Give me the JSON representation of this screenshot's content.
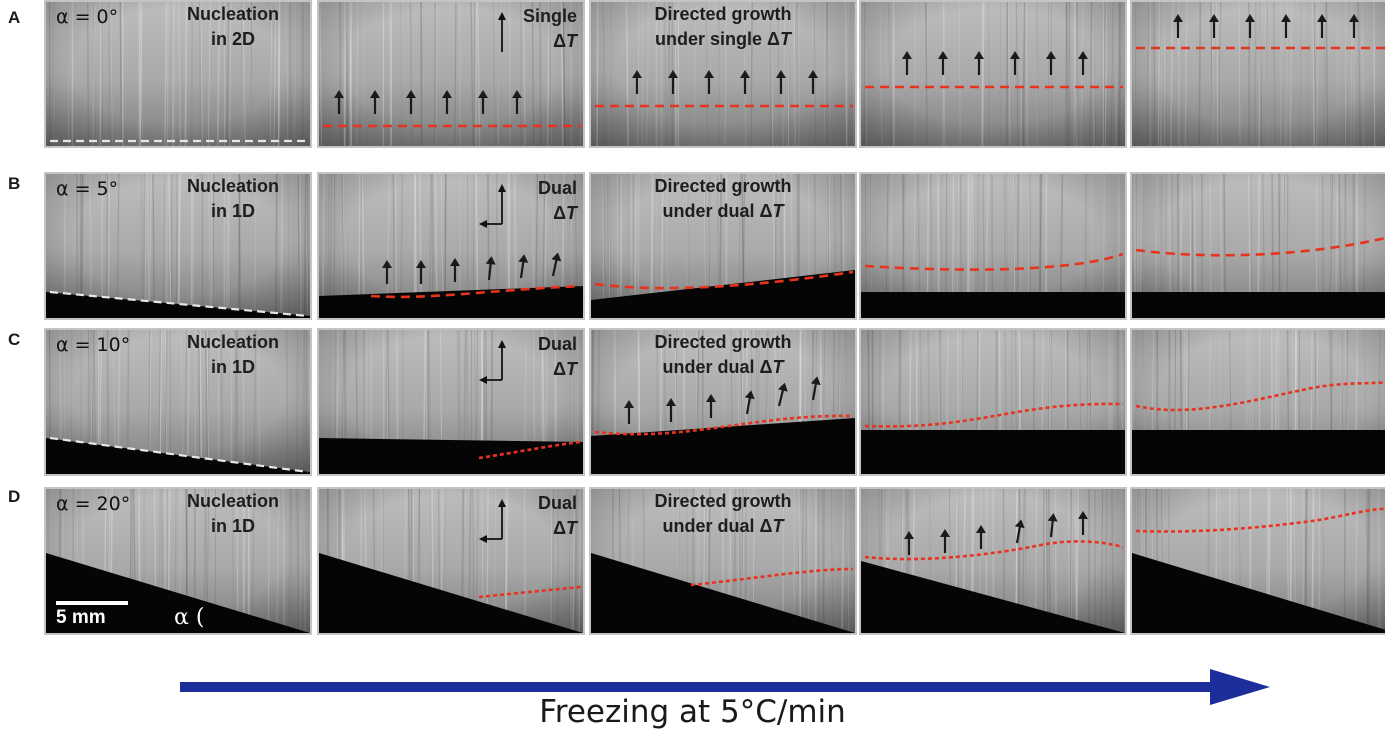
{
  "rows": [
    {
      "letter": "A",
      "alpha": "α = 0°",
      "nucleation": [
        "Nucleation",
        "in 2D"
      ],
      "gradient": [
        "Single",
        "ΔT"
      ],
      "growth": [
        "Directed growth",
        "under single ΔT"
      ]
    },
    {
      "letter": "B",
      "alpha": "α = 5°",
      "nucleation": [
        "Nucleation",
        "in 1D"
      ],
      "gradient": [
        "Dual",
        "ΔT"
      ],
      "growth": [
        "Directed growth",
        "under dual ΔT"
      ]
    },
    {
      "letter": "C",
      "alpha": "α = 10°",
      "nucleation": [
        "Nucleation",
        "in 1D"
      ],
      "gradient": [
        "Dual",
        "ΔT"
      ],
      "growth": [
        "Directed growth",
        "under dual ΔT"
      ]
    },
    {
      "letter": "D",
      "alpha": "α = 20°",
      "nucleation": [
        "Nucleation",
        "in 1D"
      ],
      "gradient": [
        "Dual",
        "ΔT"
      ],
      "growth": [
        "Directed growth",
        "under dual ΔT"
      ]
    }
  ],
  "scale_bar": "5 mm",
  "angle_label": "α (",
  "timeline": {
    "label": "Freezing at 5°C/min"
  },
  "colors": {
    "freeze_front": "#e8331e",
    "nucleation_line": "#e6e6e6",
    "timeline_arrow": "#1c2d9c",
    "growth_arrow": "#1a1a1a",
    "panel_border": "#c4c4c4"
  }
}
